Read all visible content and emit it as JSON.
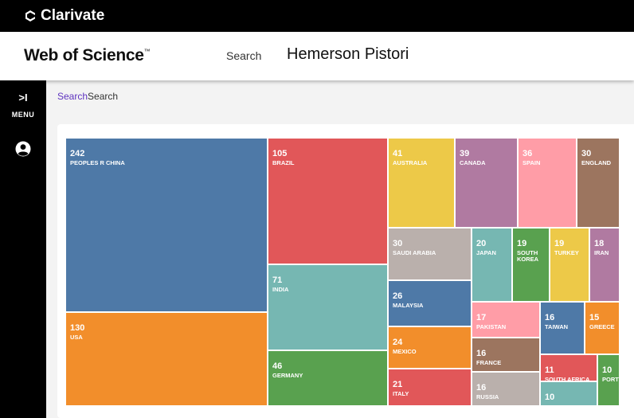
{
  "brand": {
    "name": "Clarivate"
  },
  "header": {
    "product": "Web of Science",
    "trademark": "™",
    "nav_search": "Search",
    "query": "Hemerson Pistori"
  },
  "sidebar": {
    "menu_chevron": ">I",
    "menu_label": "MENU"
  },
  "breadcrumb": {
    "link": "Search",
    "current": "Search"
  },
  "chart_data": {
    "type": "treemap",
    "items": [
      {
        "label": "PEOPLES R CHINA",
        "value": 242,
        "color": "#4e79a7"
      },
      {
        "label": "USA",
        "value": 130,
        "color": "#f28e2b"
      },
      {
        "label": "BRAZIL",
        "value": 105,
        "color": "#e15759"
      },
      {
        "label": "INDIA",
        "value": 71,
        "color": "#76b7b2"
      },
      {
        "label": "GERMANY",
        "value": 46,
        "color": "#59a14f"
      },
      {
        "label": "AUSTRALIA",
        "value": 41,
        "color": "#edc948"
      },
      {
        "label": "CANADA",
        "value": 39,
        "color": "#b07aa1"
      },
      {
        "label": "SPAIN",
        "value": 36,
        "color": "#ff9da7"
      },
      {
        "label": "ENGLAND",
        "value": 30,
        "color": "#9c755f"
      },
      {
        "label": "SAUDI ARABIA",
        "value": 30,
        "color": "#bab0ac"
      },
      {
        "label": "JAPAN",
        "value": 20,
        "color": "#76b7b2"
      },
      {
        "label": "SOUTH KOREA",
        "value": 19,
        "color": "#59a14f"
      },
      {
        "label": "TURKEY",
        "value": 19,
        "color": "#edc948"
      },
      {
        "label": "IRAN",
        "value": 18,
        "color": "#b07aa1"
      },
      {
        "label": "MALAYSIA",
        "value": 26,
        "color": "#4e79a7"
      },
      {
        "label": "PAKISTAN",
        "value": 17,
        "color": "#ff9da7"
      },
      {
        "label": "TAIWAN",
        "value": 16,
        "color": "#4e79a7"
      },
      {
        "label": "GREECE",
        "value": 15,
        "color": "#f28e2b"
      },
      {
        "label": "MEXICO",
        "value": 24,
        "color": "#f28e2b"
      },
      {
        "label": "FRANCE",
        "value": 16,
        "color": "#9c755f"
      },
      {
        "label": "SOUTH AFRICA",
        "value": 11,
        "color": "#e15759"
      },
      {
        "label": "PORT",
        "value": 10,
        "color": "#59a14f"
      },
      {
        "label": "ITALY",
        "value": 21,
        "color": "#e15759"
      },
      {
        "label": "RUSSIA",
        "value": 16,
        "color": "#bab0ac"
      },
      {
        "label": "",
        "value": 10,
        "color": "#76b7b2"
      }
    ]
  }
}
